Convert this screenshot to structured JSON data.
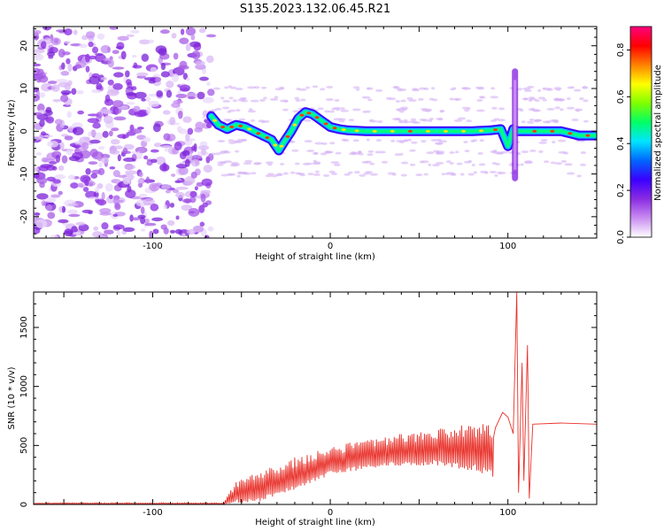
{
  "title": "S135.2023.132.06.45.R21",
  "chart_data": [
    {
      "type": "heatmap",
      "name": "spectrogram",
      "xlabel": "Height of straight line (km)",
      "ylabel": "Frequency (Hz)",
      "xlim": [
        -167,
        150
      ],
      "ylim": [
        -25,
        24.5
      ],
      "x_ticks": [
        "-100",
        "0",
        "100"
      ],
      "y_ticks": [
        "-20",
        "-10",
        "0",
        "10",
        "20"
      ],
      "colorbar": {
        "label": "Normalized spectral amplitude",
        "range": [
          0.0,
          0.9
        ],
        "ticks": [
          "0.0",
          "0.2",
          "0.4",
          "0.6",
          "0.8"
        ],
        "colormap": [
          "#ffffff",
          "#c98cf0",
          "#8a2be2",
          "#3a00ff",
          "#0066ff",
          "#00e5ff",
          "#00ff66",
          "#7fff00",
          "#ffff00",
          "#ff8000",
          "#ff0000",
          "#ff007f"
        ]
      },
      "noise_region_x": [
        -167,
        -67
      ],
      "ridge": {
        "x": [
          -67,
          -63,
          -58,
          -53,
          -48,
          -43,
          -38,
          -33,
          -29,
          -26,
          -22,
          -18,
          -14,
          -10,
          -5,
          0,
          5,
          10,
          20,
          30,
          40,
          50,
          60,
          70,
          80,
          90,
          96,
          98,
          100,
          103,
          105,
          110,
          120,
          130,
          140,
          150
        ],
        "y": [
          3.5,
          1.5,
          0.5,
          1.5,
          1.0,
          0.0,
          -1.0,
          -2.0,
          -4.5,
          -2.5,
          0.0,
          3.0,
          4.5,
          4.0,
          2.5,
          1.0,
          0.5,
          0.2,
          0.0,
          0.0,
          0.0,
          0.0,
          0.0,
          0.0,
          0.0,
          0.2,
          0.5,
          -1.5,
          -3.5,
          0.5,
          0.0,
          0.0,
          0.0,
          0.0,
          -1.0,
          -1.0
        ]
      },
      "burst": {
        "x": 104,
        "y_range": [
          -11,
          14
        ]
      }
    },
    {
      "type": "line",
      "name": "snr",
      "xlabel": "Height of straight line (km)",
      "ylabel": "SNR (10 * v/v)",
      "xlim": [
        -167,
        150
      ],
      "ylim": [
        0,
        1800
      ],
      "x_ticks": [
        "-100",
        "0",
        "100"
      ],
      "y_ticks": [
        "0",
        "500",
        "1000",
        "1500"
      ],
      "color": "#e8312a",
      "envelope": {
        "x": [
          -167,
          -100,
          -60,
          -53,
          -40,
          -20,
          0,
          20,
          40,
          60,
          80,
          92
        ],
        "upper": [
          15,
          15,
          15,
          200,
          280,
          400,
          480,
          560,
          600,
          640,
          700,
          700
        ],
        "lower": [
          0,
          0,
          0,
          10,
          20,
          120,
          250,
          300,
          330,
          330,
          280,
          230
        ]
      },
      "segments": [
        {
          "x": 93,
          "y": 650
        },
        {
          "x": 97,
          "y": 780
        },
        {
          "x": 100,
          "y": 740
        },
        {
          "x": 103,
          "y": 600
        },
        {
          "x": 105,
          "y": 1800
        },
        {
          "x": 106,
          "y": 100
        },
        {
          "x": 108,
          "y": 1200
        },
        {
          "x": 109,
          "y": 200
        },
        {
          "x": 111,
          "y": 1350
        },
        {
          "x": 112,
          "y": 50
        },
        {
          "x": 114,
          "y": 680
        },
        {
          "x": 130,
          "y": 690
        },
        {
          "x": 150,
          "y": 680
        }
      ]
    }
  ]
}
